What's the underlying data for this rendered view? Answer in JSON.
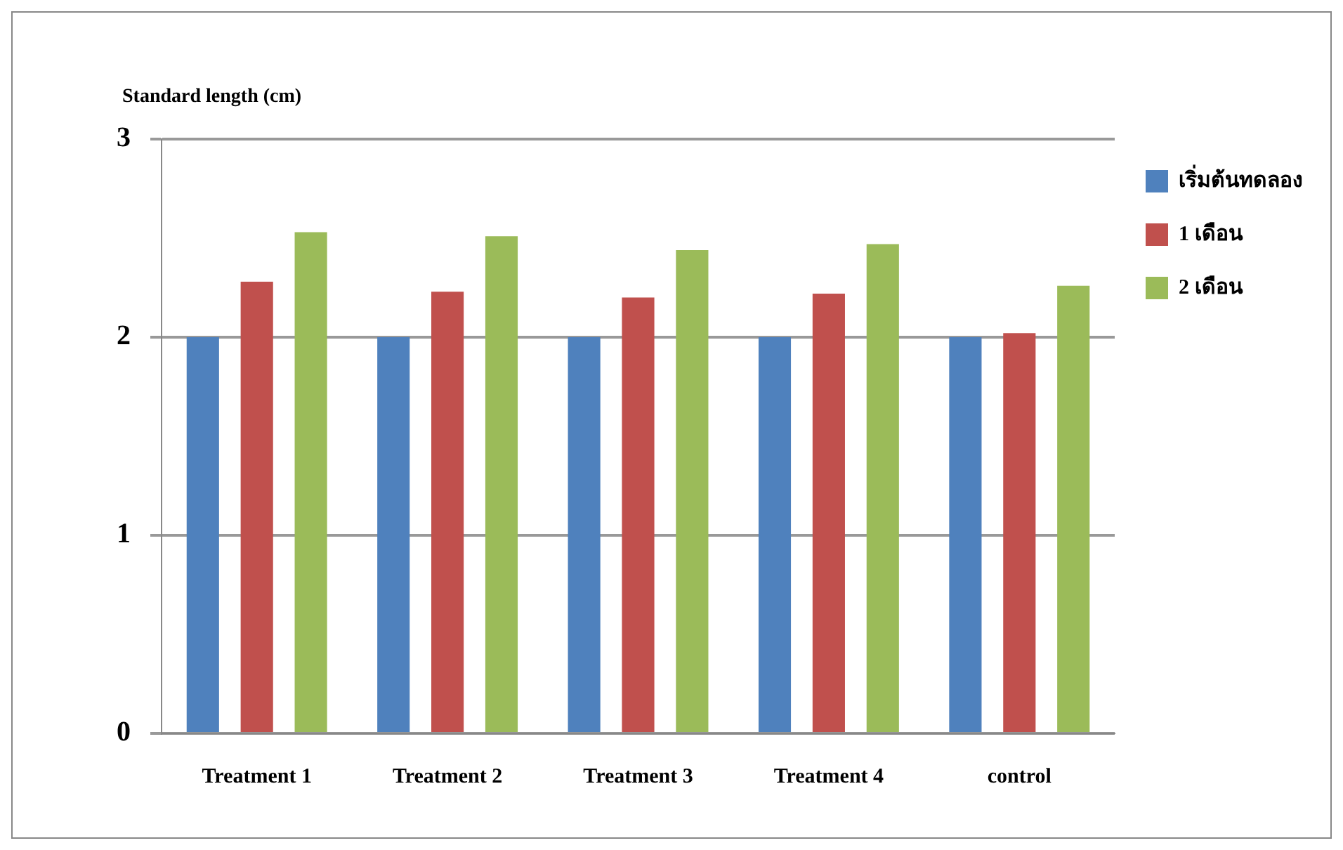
{
  "chart_data": {
    "type": "bar",
    "ylabel": "Standard length (cm)",
    "categories": [
      "Treatment 1",
      "Treatment 2",
      "Treatment 3",
      "Treatment 4",
      "control"
    ],
    "series": [
      {
        "name": "เริ่มต้นทดลอง",
        "color": "#4f81bd",
        "values": [
          2.0,
          2.0,
          2.0,
          2.0,
          2.0
        ]
      },
      {
        "name": "1 เดือน",
        "color": "#c0504d",
        "values": [
          2.28,
          2.23,
          2.2,
          2.22,
          2.02
        ]
      },
      {
        "name": "2 เดือน",
        "color": "#9bbb59",
        "values": [
          2.53,
          2.51,
          2.44,
          2.47,
          2.26
        ]
      }
    ],
    "ylim": [
      0,
      3
    ],
    "yticks": [
      0,
      1,
      2,
      3
    ],
    "grid": "y",
    "legend": "top right"
  }
}
